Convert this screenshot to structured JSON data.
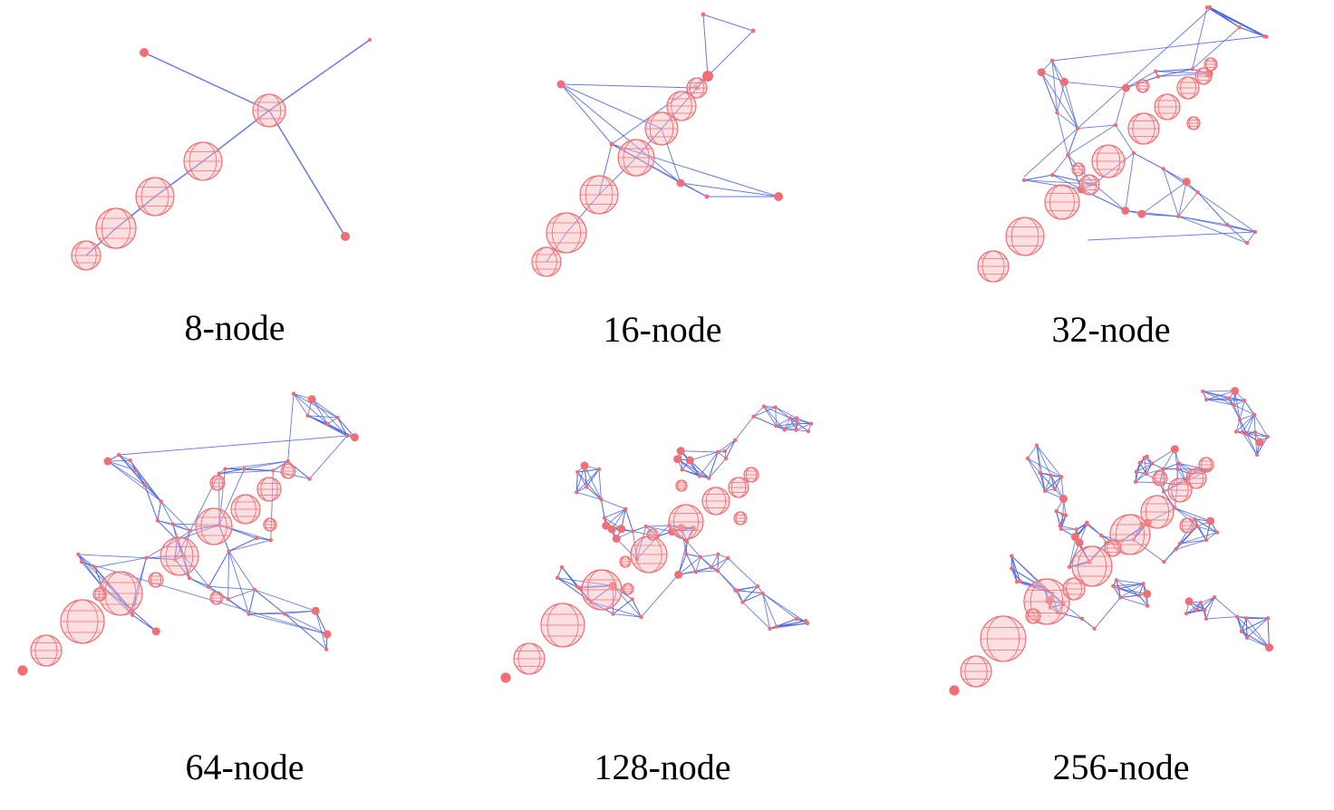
{
  "colors": {
    "edge": "#4a64e0",
    "node": "#ef6f74",
    "node_fill": "#f8b9bb",
    "background": "#ffffff"
  },
  "panels": [
    {
      "caption": "8-node"
    },
    {
      "caption": "16-node"
    },
    {
      "caption": "32-node"
    },
    {
      "caption": "64-node"
    },
    {
      "caption": "128-node"
    },
    {
      "caption": "256-node"
    }
  ]
}
